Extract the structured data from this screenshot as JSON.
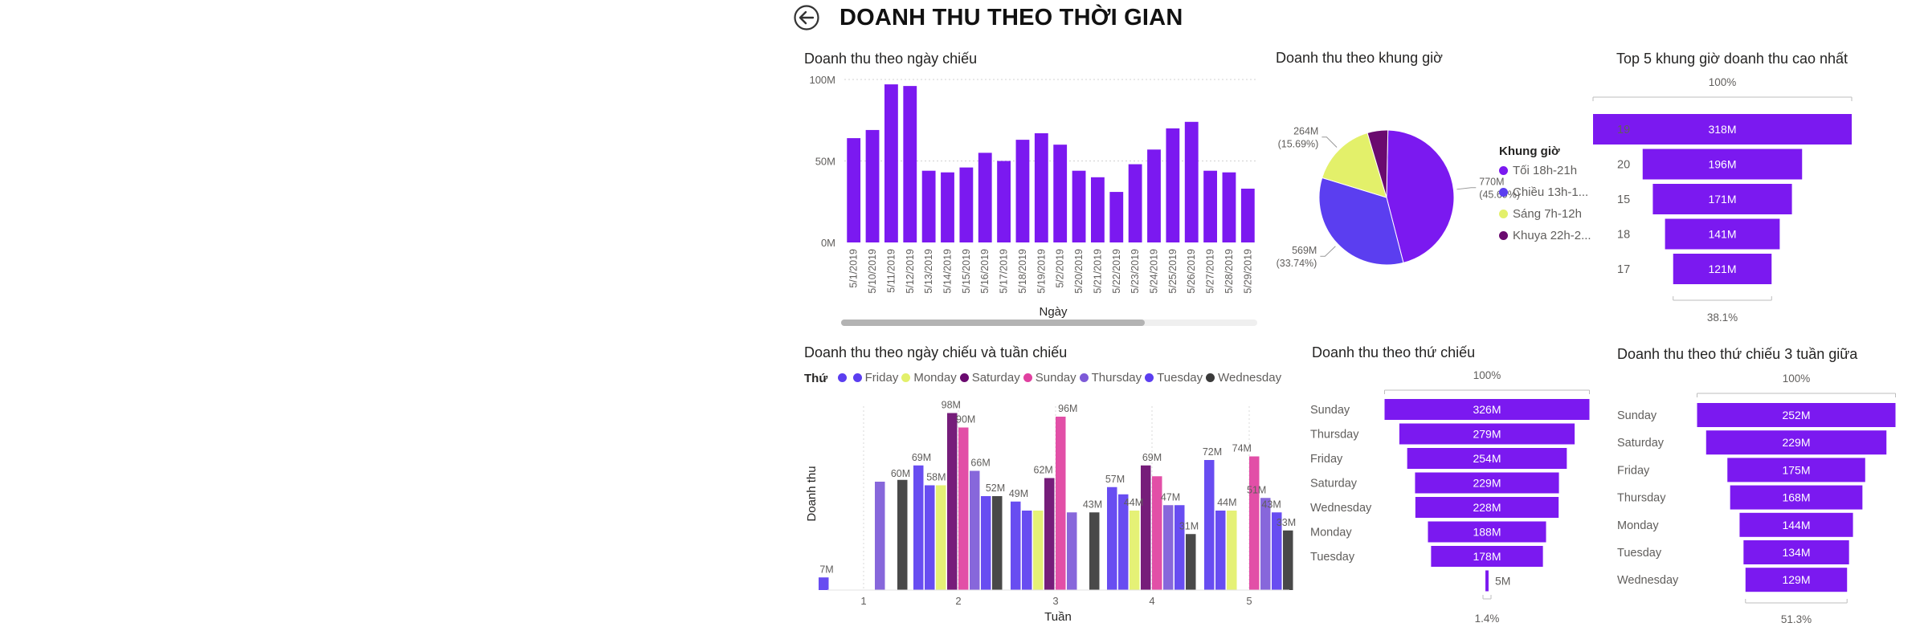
{
  "page": {
    "title": "DOANH THU THEO THỜI GIAN",
    "back_icon": "back-arrow-icon"
  },
  "colors": {
    "purple": "#7b19f0",
    "blue": "#5b3ef0",
    "yellow": "#e3f06a",
    "darkpurple": "#6a0a6f",
    "pink": "#e040a0",
    "violet": "#7d5ad8",
    "black": "#3a3a3a",
    "funnel": "#7b19f0"
  },
  "chart_data": [
    {
      "id": "daily",
      "type": "bar",
      "title": "Doanh thu theo ngày chiếu",
      "xlabel": "Ngày",
      "ylabel": "",
      "ylim": [
        0,
        100
      ],
      "y_ticks": [
        "100M",
        "50M",
        "0M"
      ],
      "y_tick_values": [
        100,
        50,
        0
      ],
      "categories": [
        "5/1/2019",
        "5/10/2019",
        "5/11/2019",
        "5/12/2019",
        "5/13/2019",
        "5/14/2019",
        "5/15/2019",
        "5/16/2019",
        "5/17/2019",
        "5/18/2019",
        "5/19/2019",
        "5/2/2019",
        "5/20/2019",
        "5/21/2019",
        "5/22/2019",
        "5/23/2019",
        "5/24/2019",
        "5/25/2019",
        "5/26/2019",
        "5/27/2019",
        "5/28/2019",
        "5/29/2019"
      ],
      "values": [
        64,
        69,
        97,
        96,
        44,
        43,
        46,
        55,
        50,
        63,
        67,
        60,
        44,
        40,
        31,
        48,
        57,
        70,
        74,
        44,
        43,
        33
      ],
      "grid": true
    },
    {
      "id": "pie",
      "type": "pie",
      "title": "Doanh thu theo khung giờ",
      "legend_title": "Khung giờ",
      "legend_position": "right",
      "slices": [
        {
          "name": "Tối 18h-21h",
          "value": 770,
          "label": "770M",
          "pct": "(45.69%)"
        },
        {
          "name": "Chiều 13h-1...",
          "value": 569,
          "label": "569M",
          "pct": "(33.74%)"
        },
        {
          "name": "Sáng 7h-12h",
          "value": 264,
          "label": "264M",
          "pct": "(15.69%)"
        },
        {
          "name": "Khuya 22h-2...",
          "value": 83,
          "label": "",
          "pct": ""
        }
      ]
    },
    {
      "id": "top5",
      "type": "bar",
      "subtype": "funnel",
      "title": "Top 5 khung giờ doanh thu cao nhất",
      "top_pct": "100%",
      "bottom_pct": "38.1%",
      "categories": [
        "19",
        "20",
        "15",
        "18",
        "17"
      ],
      "values": [
        318,
        196,
        171,
        141,
        121
      ],
      "labels": [
        "318M",
        "196M",
        "171M",
        "141M",
        "121M"
      ]
    },
    {
      "id": "weekday",
      "type": "bar",
      "subtype": "funnel",
      "title": "Doanh thu theo thứ chiếu",
      "top_pct": "100%",
      "bottom_pct": "1.4%",
      "categories": [
        "Sunday",
        "Thursday",
        "Friday",
        "Saturday",
        "Wednesday",
        "Monday",
        "Tuesday",
        ""
      ],
      "values": [
        326,
        279,
        254,
        229,
        228,
        188,
        178,
        5
      ],
      "labels": [
        "326M",
        "279M",
        "254M",
        "229M",
        "228M",
        "188M",
        "178M",
        "5M"
      ]
    },
    {
      "id": "weekday3",
      "type": "bar",
      "subtype": "funnel",
      "title": "Doanh thu theo thứ chiếu 3 tuần giữa",
      "top_pct": "100%",
      "bottom_pct": "51.3%",
      "categories": [
        "Sunday",
        "Saturday",
        "Friday",
        "Thursday",
        "Monday",
        "Tuesday",
        "Wednesday"
      ],
      "values": [
        252,
        229,
        175,
        168,
        144,
        134,
        129
      ],
      "labels": [
        "252M",
        "229M",
        "175M",
        "168M",
        "144M",
        "134M",
        "129M"
      ]
    },
    {
      "id": "weekly",
      "type": "bar",
      "title": "Doanh thu theo ngày chiếu và tuần chiếu",
      "xlabel": "Tuần",
      "ylabel": "Doanh thu",
      "legend_title": "Thứ",
      "legend_position": "top-left",
      "categories": [
        "1",
        "2",
        "3",
        "4",
        "5"
      ],
      "series": [
        {
          "name": "",
          "color": "#5b3ef0",
          "values": [
            7,
            69,
            49,
            57,
            72
          ]
        },
        {
          "name": "Friday",
          "color": "#5b3ef0",
          "values": [
            null,
            58,
            44,
            53,
            44
          ]
        },
        {
          "name": "Monday",
          "color": "#e3f06a",
          "values": [
            null,
            58,
            44,
            44,
            44
          ]
        },
        {
          "name": "Saturday",
          "color": "#6a0a6f",
          "values": [
            null,
            98,
            62,
            69,
            null
          ]
        },
        {
          "name": "Sunday",
          "color": "#e040a0",
          "values": [
            null,
            90,
            96,
            63,
            74
          ]
        },
        {
          "name": "Thursday",
          "color": "#7d5ad8",
          "values": [
            60,
            66,
            43,
            47,
            51
          ]
        },
        {
          "name": "Tuesday",
          "color": "#5b3ef0",
          "values": [
            null,
            52,
            null,
            47,
            43
          ]
        },
        {
          "name": "Wednesday",
          "color": "#3a3a3a",
          "values": [
            61,
            52,
            43,
            31,
            33
          ]
        }
      ],
      "data_labels": [
        {
          "cat": "1",
          "text": "7M"
        },
        {
          "cat": "1",
          "text": "60M"
        },
        {
          "cat": "2",
          "text": "69M"
        },
        {
          "cat": "2",
          "text": "58M"
        },
        {
          "cat": "2",
          "text": "98M"
        },
        {
          "cat": "2",
          "text": "90M"
        },
        {
          "cat": "2",
          "text": "66M"
        },
        {
          "cat": "2",
          "text": "52M"
        },
        {
          "cat": "3",
          "text": "49M"
        },
        {
          "cat": "3",
          "text": "62M"
        },
        {
          "cat": "3",
          "text": "96M"
        },
        {
          "cat": "3",
          "text": "43M"
        },
        {
          "cat": "4",
          "text": "57M"
        },
        {
          "cat": "4",
          "text": "44M"
        },
        {
          "cat": "4",
          "text": "69M"
        },
        {
          "cat": "4",
          "text": "47M"
        },
        {
          "cat": "4",
          "text": "31M"
        },
        {
          "cat": "5",
          "text": "72M"
        },
        {
          "cat": "5",
          "text": "44M"
        },
        {
          "cat": "5",
          "text": "74M"
        },
        {
          "cat": "5",
          "text": "51M"
        },
        {
          "cat": "5",
          "text": "43M"
        },
        {
          "cat": "5",
          "text": "33M"
        }
      ]
    }
  ]
}
